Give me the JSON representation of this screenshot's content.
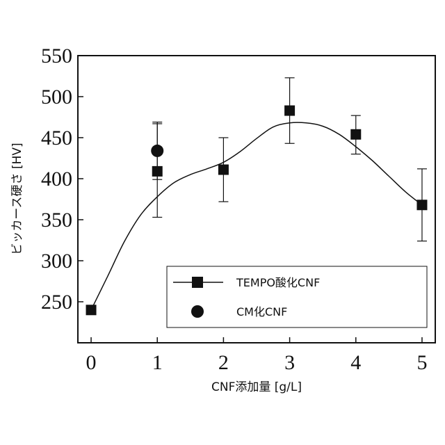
{
  "chart_data": {
    "type": "scatter",
    "xlabel": "CNF添加量 [g/L]",
    "ylabel": "ビッカース硬さ [HV]",
    "xlim": [
      -0.2,
      5.2
    ],
    "ylim": [
      200,
      550
    ],
    "xticks": [
      0,
      1,
      2,
      3,
      4,
      5
    ],
    "yticks": [
      250,
      300,
      350,
      400,
      450,
      500,
      550
    ],
    "legend_position": "bottom-right",
    "series": [
      {
        "name": "TEMPO酸化CNF",
        "marker": "square",
        "color": "#111111",
        "x": [
          0,
          1,
          2,
          3,
          4,
          5
        ],
        "y": [
          240,
          409,
          411,
          483,
          454,
          368
        ],
        "err_low": [
          null,
          56,
          39,
          40,
          24,
          44
        ],
        "err_high": [
          null,
          58,
          39,
          40,
          23,
          44
        ]
      },
      {
        "name": "CM化CNF",
        "marker": "circle",
        "color": "#111111",
        "x": [
          1
        ],
        "y": [
          434
        ],
        "err_low": [
          35
        ],
        "err_high": [
          35
        ]
      }
    ],
    "trend_line": {
      "type": "smooth",
      "x": [
        0,
        0.25,
        0.5,
        0.75,
        1,
        1.25,
        1.5,
        1.75,
        2,
        2.25,
        2.5,
        2.75,
        3,
        3.25,
        3.5,
        3.75,
        4,
        4.25,
        4.5,
        4.75,
        5
      ],
      "y": [
        240,
        281,
        323,
        356,
        378,
        395,
        405,
        412,
        420,
        433,
        449,
        463,
        468,
        468,
        464,
        454,
        439,
        422,
        403,
        384,
        368
      ]
    }
  }
}
